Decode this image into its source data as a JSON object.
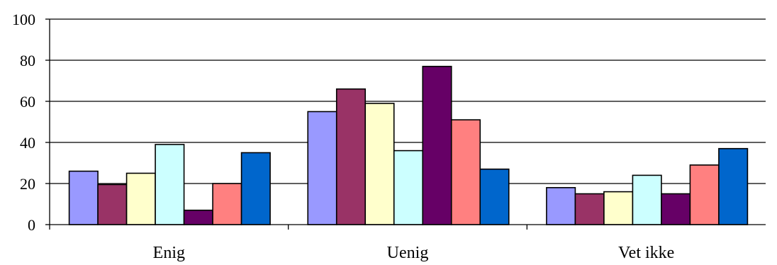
{
  "chart_data": {
    "type": "bar",
    "title": "",
    "xlabel": "",
    "ylabel": "",
    "categories": [
      "Enig",
      "Uenig",
      "Vet ikke"
    ],
    "ylim": [
      0,
      100
    ],
    "yticks": [
      0,
      20,
      40,
      60,
      80,
      100
    ],
    "grid": true,
    "legend": "none",
    "series": [
      {
        "color": "#9999FF",
        "values": [
          26,
          55,
          18
        ]
      },
      {
        "color": "#993366",
        "values": [
          19.5,
          66,
          15
        ]
      },
      {
        "color": "#FFFFCC",
        "values": [
          25,
          59,
          16
        ]
      },
      {
        "color": "#CCFFFF",
        "values": [
          39,
          36,
          24
        ]
      },
      {
        "color": "#660066",
        "values": [
          7,
          77,
          15
        ]
      },
      {
        "color": "#FF8080",
        "values": [
          20,
          51,
          29
        ]
      },
      {
        "color": "#0066CC",
        "values": [
          35,
          27,
          37
        ]
      }
    ]
  }
}
